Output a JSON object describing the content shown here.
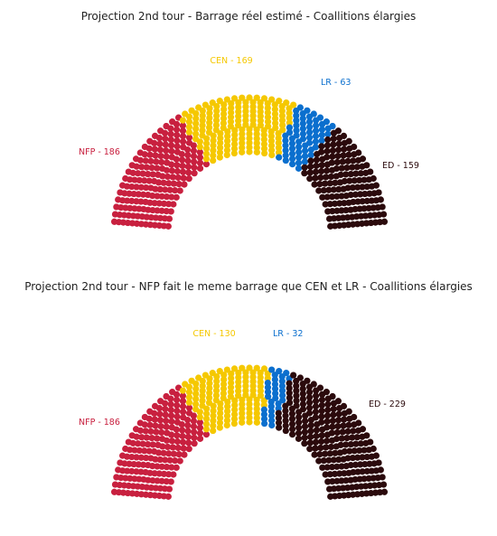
{
  "chart_data": [
    {
      "type": "parliament",
      "title": "Projection 2nd tour - Barrage réel estimé - Coallitions élargies",
      "total_seats": 577,
      "series": [
        {
          "name": "NFP",
          "label": "NFP - 186",
          "seats": 186,
          "color": "#c8203f"
        },
        {
          "name": "CEN",
          "label": "CEN - 169",
          "seats": 169,
          "color": "#f5c800"
        },
        {
          "name": "LR",
          "label": "LR - 63",
          "seats": 63,
          "color": "#0b6fce"
        },
        {
          "name": "ED",
          "label": "ED - 159",
          "seats": 159,
          "color": "#2b0a0c"
        }
      ]
    },
    {
      "type": "parliament",
      "title": "Projection 2nd tour - NFP fait le meme barrage que CEN et LR - Coallitions élargies",
      "total_seats": 577,
      "series": [
        {
          "name": "NFP",
          "label": "NFP - 186",
          "seats": 186,
          "color": "#c8203f"
        },
        {
          "name": "CEN",
          "label": "CEN - 130",
          "seats": 130,
          "color": "#f5c800"
        },
        {
          "name": "LR",
          "label": "LR - 32",
          "seats": 32,
          "color": "#0b6fce"
        },
        {
          "name": "ED",
          "label": "ED - 229",
          "seats": 229,
          "color": "#2b0a0c"
        }
      ]
    }
  ]
}
